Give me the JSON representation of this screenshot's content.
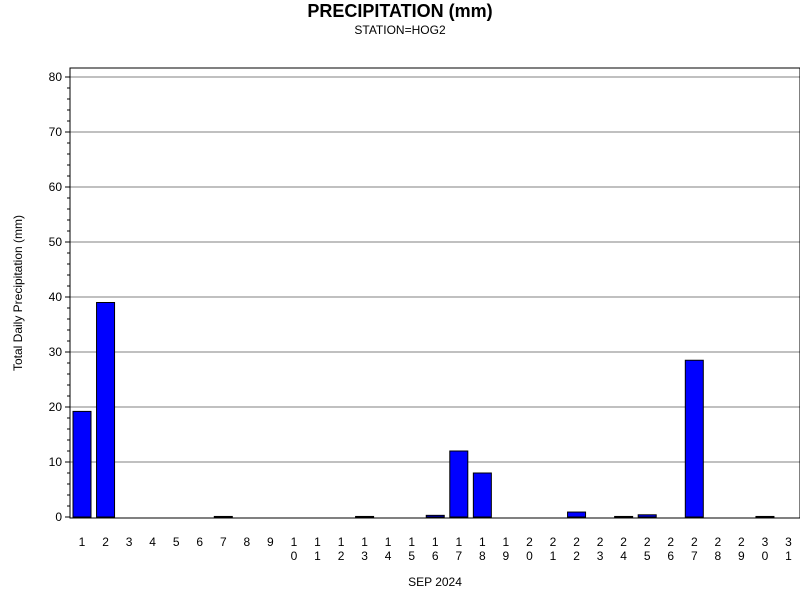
{
  "chart_data": {
    "type": "bar",
    "title": "PRECIPITATION (mm)",
    "subtitle": "STATION=HOG2",
    "xlabel": "SEP 2024",
    "ylabel": "Total Daily Precipitation (mm)",
    "ylim": [
      0,
      80
    ],
    "yticks": [
      0,
      10,
      20,
      30,
      40,
      50,
      60,
      70,
      80
    ],
    "grid": true,
    "legend": "none",
    "bar_color": "#0000ff",
    "categories": [
      "1",
      "2",
      "3",
      "4",
      "5",
      "6",
      "7",
      "8",
      "9",
      "10",
      "11",
      "12",
      "13",
      "14",
      "15",
      "16",
      "17",
      "18",
      "19",
      "20",
      "21",
      "22",
      "23",
      "24",
      "25",
      "26",
      "27",
      "28",
      "29",
      "30",
      "31"
    ],
    "values": [
      19.2,
      39.0,
      0,
      0,
      0,
      0,
      0.1,
      0,
      0,
      0,
      0,
      0,
      0.1,
      0,
      0,
      0.3,
      12.0,
      8.0,
      0,
      0,
      0,
      0.9,
      0,
      0.1,
      0.4,
      0,
      28.5,
      0,
      0,
      0.1,
      0
    ]
  }
}
